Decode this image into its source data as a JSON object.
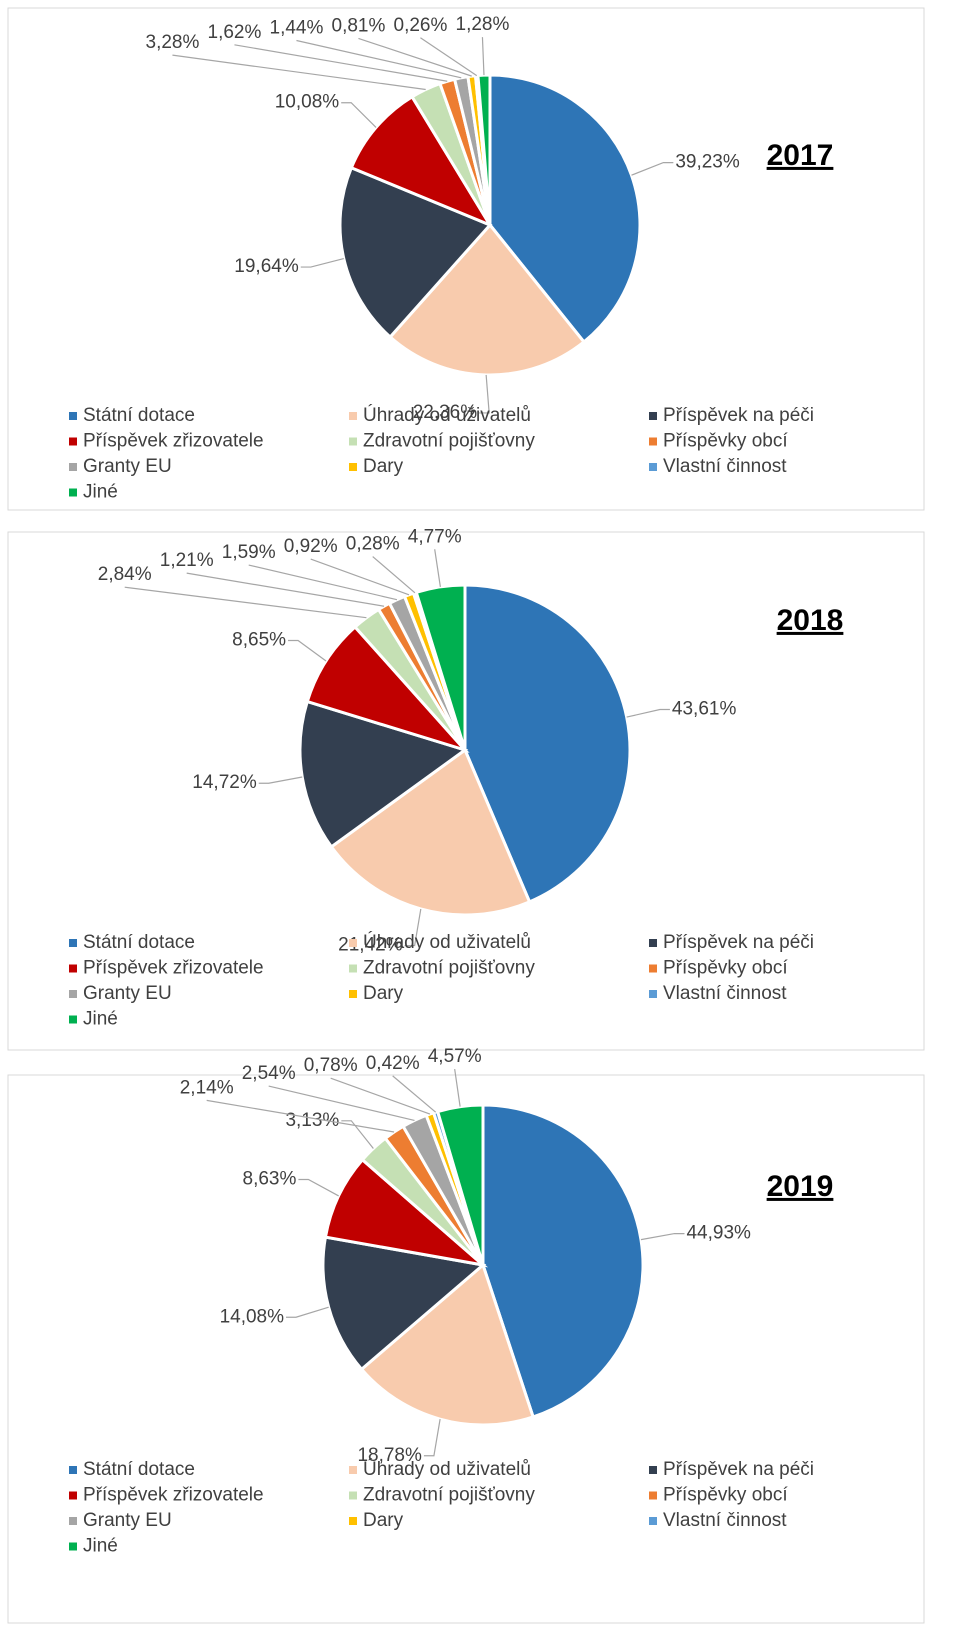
{
  "chart_data": [
    {
      "type": "pie",
      "title": "2017",
      "categories": [
        "Státní dotace",
        "Úhrady od uživatelů",
        "Příspěvek na péči",
        "Příspěvek zřizovatele",
        "Zdravotní pojišťovny",
        "Příspěvky obcí",
        "Granty EU",
        "Dary",
        "Vlastní činnost",
        "Jiné"
      ],
      "values": [
        39.23,
        22.36,
        19.64,
        10.08,
        3.28,
        1.62,
        1.44,
        0.81,
        0.26,
        1.28
      ],
      "value_labels": [
        "39,23%",
        "22,36%",
        "19,64%",
        "10,08%",
        "3,28%",
        "1,62%",
        "1,44%",
        "0,81%",
        "0,26%",
        "1,28%"
      ],
      "colors": [
        "#2e75b6",
        "#f8cbad",
        "#333f50",
        "#c00000",
        "#c5e0b4",
        "#ed7d31",
        "#a5a5a5",
        "#ffc000",
        "#5b9bd5",
        "#00b050"
      ]
    },
    {
      "type": "pie",
      "title": "2018",
      "categories": [
        "Státní dotace",
        "Úhrady od uživatelů",
        "Příspěvek na péči",
        "Příspěvek zřizovatele",
        "Zdravotní pojišťovny",
        "Příspěvky obcí",
        "Granty EU",
        "Dary",
        "Vlastní činnost",
        "Jiné"
      ],
      "values": [
        43.61,
        21.42,
        14.72,
        8.65,
        2.84,
        1.21,
        1.59,
        0.92,
        0.28,
        4.77
      ],
      "value_labels": [
        "43,61%",
        "21,42%",
        "14,72%",
        "8,65%",
        "2,84%",
        "1,21%",
        "1,59%",
        "0,92%",
        "0,28%",
        "4,77%"
      ],
      "colors": [
        "#2e75b6",
        "#f8cbad",
        "#333f50",
        "#c00000",
        "#c5e0b4",
        "#ed7d31",
        "#a5a5a5",
        "#ffc000",
        "#5b9bd5",
        "#00b050"
      ]
    },
    {
      "type": "pie",
      "title": "2019",
      "categories": [
        "Státní dotace",
        "Úhrady od uživatelů",
        "Příspěvek na péči",
        "Příspěvek zřizovatele",
        "Zdravotní pojišťovny",
        "Příspěvky obcí",
        "Granty EU",
        "Dary",
        "Vlastní činnost",
        "Jiné"
      ],
      "values": [
        44.93,
        18.78,
        14.08,
        8.63,
        3.13,
        2.14,
        2.54,
        0.78,
        0.42,
        4.57
      ],
      "value_labels": [
        "44,93%",
        "18,78%",
        "14,08%",
        "8,63%",
        "3,13%",
        "2,14%",
        "2,54%",
        "0,78%",
        "0,42%",
        "4,57%"
      ],
      "colors": [
        "#2e75b6",
        "#f8cbad",
        "#333f50",
        "#c00000",
        "#c5e0b4",
        "#ed7d31",
        "#a5a5a5",
        "#ffc000",
        "#5b9bd5",
        "#00b050"
      ]
    }
  ]
}
